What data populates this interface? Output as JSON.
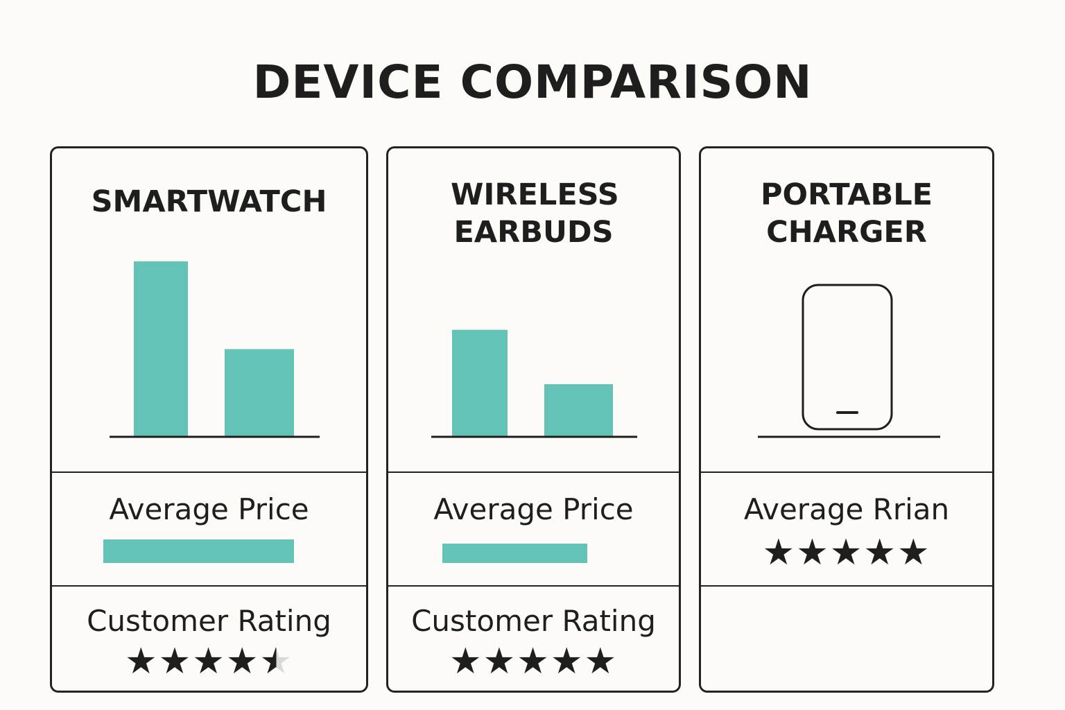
{
  "page": {
    "title": "DEVICE COMPARISON"
  },
  "colors": {
    "accent": "#62c3b6",
    "ink": "#1e1e1e",
    "empty_star": "#d9d9d9"
  },
  "chart_data": [
    {
      "type": "bar",
      "title": "SMARTWATCH",
      "values": [
        1.0,
        0.5
      ],
      "ylim": [
        0,
        1
      ],
      "average_price": {
        "label": "Average Price",
        "value": 1.0
      },
      "customer_rating": {
        "label": "Customer Rating",
        "stars": 4.5,
        "max": 5
      }
    },
    {
      "type": "bar",
      "title": "WIRELESS EARBUDS",
      "values": [
        0.61,
        0.3
      ],
      "ylim": [
        0,
        1
      ],
      "average_price": {
        "label": "Average Price",
        "value": 0.76
      },
      "customer_rating": {
        "label": "Customer Rating",
        "stars": 5,
        "max": 5
      }
    },
    {
      "type": "icon",
      "title": "PORTABLE CHARGER",
      "icon": "phone-icon",
      "average_rating": {
        "label": "Average Rrian",
        "stars": 5,
        "max": 5
      }
    }
  ]
}
